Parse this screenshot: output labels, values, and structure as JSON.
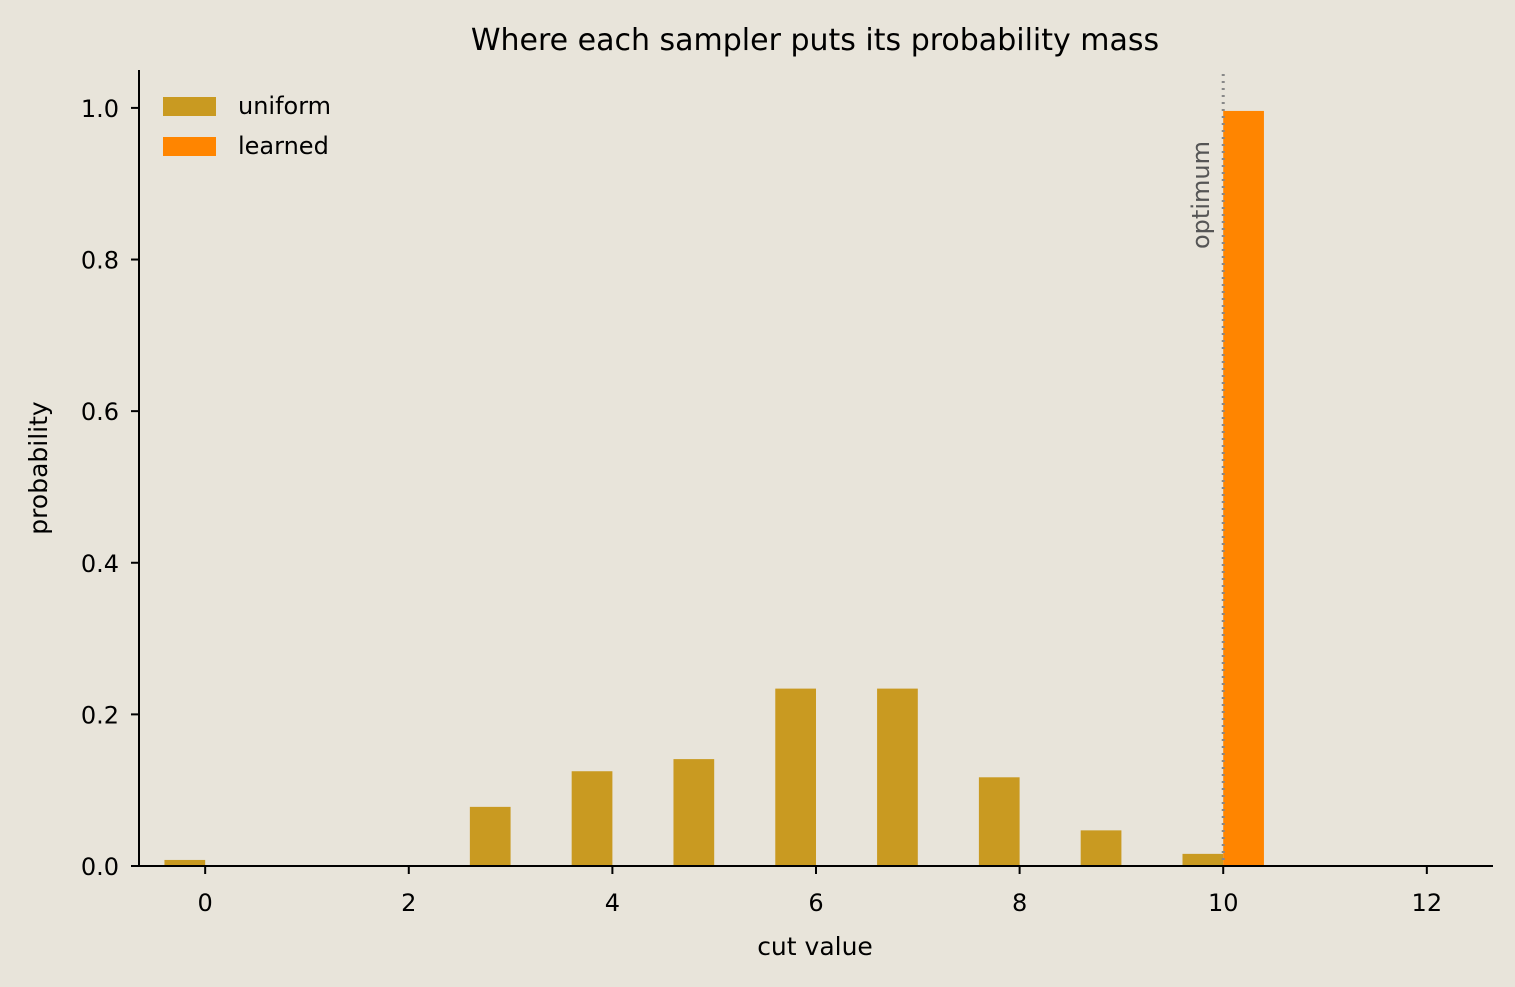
{
  "chart_data": {
    "type": "bar",
    "title": "Where each sampler puts its probability mass",
    "xlabel": "cut value",
    "ylabel": "probability",
    "xlim": [
      -0.65,
      12.65
    ],
    "ylim": [
      0,
      1.05
    ],
    "xticks": [
      0,
      2,
      4,
      6,
      8,
      10,
      12
    ],
    "yticks": [
      0.0,
      0.2,
      0.4,
      0.6,
      0.8,
      1.0
    ],
    "ytick_labels": [
      "0.0",
      "0.2",
      "0.4",
      "0.6",
      "0.8",
      "1.0"
    ],
    "legend_position": "top-left",
    "grid": false,
    "series": [
      {
        "name": "uniform",
        "color": "#c99a21",
        "x": [
          0,
          1,
          2,
          3,
          4,
          5,
          6,
          7,
          8,
          9,
          10
        ],
        "values": [
          0.008,
          0.0,
          0.0,
          0.078,
          0.125,
          0.141,
          0.234,
          0.234,
          0.117,
          0.047,
          0.016
        ]
      },
      {
        "name": "learned",
        "color": "#ff8500",
        "x": [
          10
        ],
        "values": [
          0.996
        ]
      }
    ],
    "annotations": [
      {
        "type": "vline",
        "x": 10,
        "style": "dotted",
        "color": "#888888",
        "label": "optimum"
      }
    ]
  }
}
